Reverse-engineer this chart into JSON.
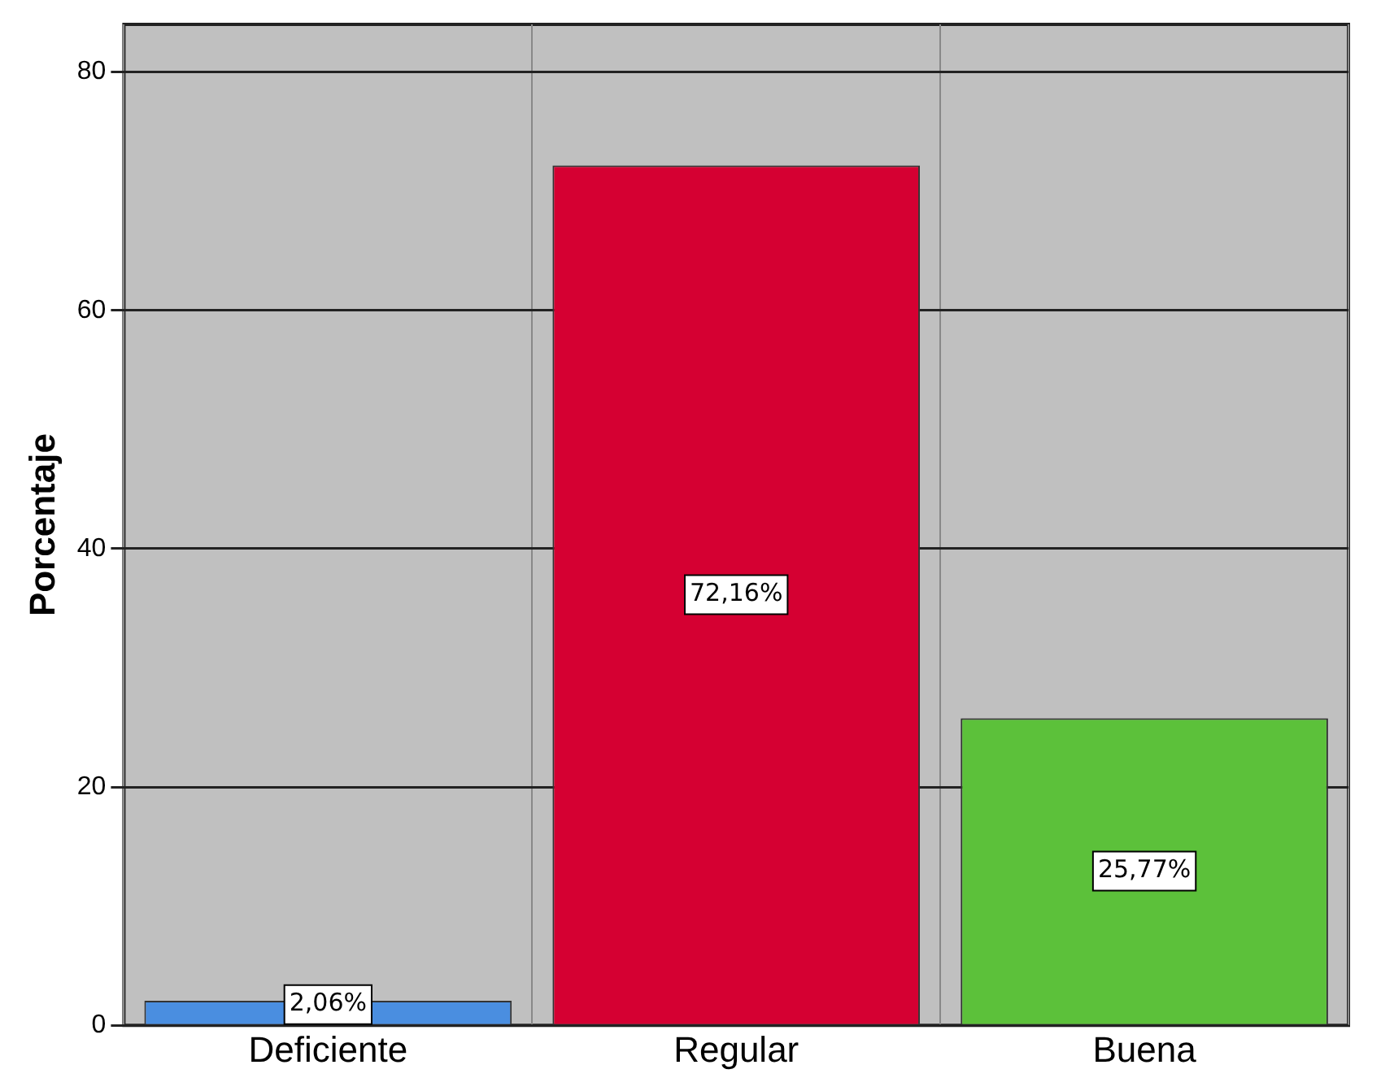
{
  "chart_data": {
    "type": "bar",
    "ylabel": "Porcentaje",
    "categories": [
      "Deficiente",
      "Regular",
      "Buena"
    ],
    "values": [
      2.06,
      72.16,
      25.77
    ],
    "colors": [
      "#4a8ee0",
      "#d50032",
      "#5cc13a"
    ],
    "value_labels": [
      "2,06%",
      "72,16%",
      "25,77%"
    ],
    "ylim": [
      0,
      84
    ],
    "yticks": [
      0,
      20,
      40,
      60,
      80
    ],
    "grid": true
  }
}
